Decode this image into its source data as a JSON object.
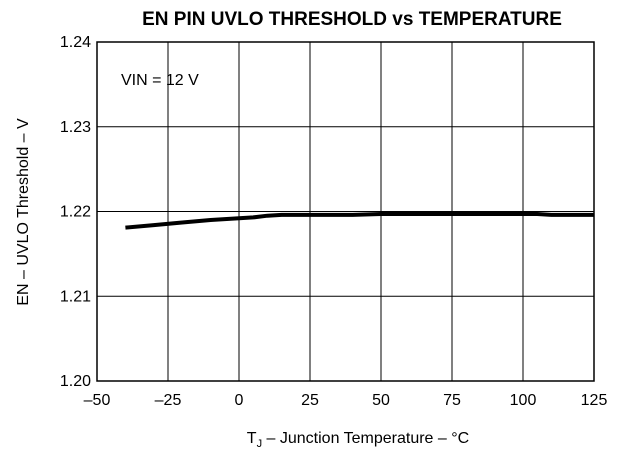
{
  "chart_data": {
    "type": "line",
    "title": "EN PIN UVLO THRESHOLD vs TEMPERATURE",
    "xlabel_prefix": "T",
    "xlabel_subscript": "J",
    "xlabel_rest": " – Junction Temperature – °C",
    "ylabel": "EN – UVLO Threshold – V",
    "xlim": [
      -50,
      125
    ],
    "ylim": [
      1.2,
      1.24
    ],
    "x_ticks": [
      -50,
      -25,
      0,
      25,
      50,
      75,
      100,
      125
    ],
    "x_tick_labels": [
      "–50",
      "–25",
      "0",
      "25",
      "50",
      "75",
      "100",
      "125"
    ],
    "y_ticks": [
      1.2,
      1.21,
      1.22,
      1.23,
      1.24
    ],
    "y_tick_labels": [
      "1.20",
      "1.21",
      "1.22",
      "1.23",
      "1.24"
    ],
    "grid": true,
    "annotation": "VIN = 12 V",
    "series": [
      {
        "color": "#000000",
        "x": [
          -40,
          -30,
          -20,
          -10,
          -5,
          0,
          5,
          10,
          15,
          20,
          30,
          40,
          50,
          60,
          70,
          80,
          90,
          100,
          105,
          110,
          115,
          120,
          125
        ],
        "y": [
          1.2181,
          1.2184,
          1.2187,
          1.219,
          1.2191,
          1.2192,
          1.2193,
          1.2195,
          1.2196,
          1.2196,
          1.2196,
          1.2196,
          1.2197,
          1.2197,
          1.2197,
          1.2197,
          1.2197,
          1.2197,
          1.2197,
          1.2196,
          1.2196,
          1.2196,
          1.2196
        ]
      }
    ]
  }
}
